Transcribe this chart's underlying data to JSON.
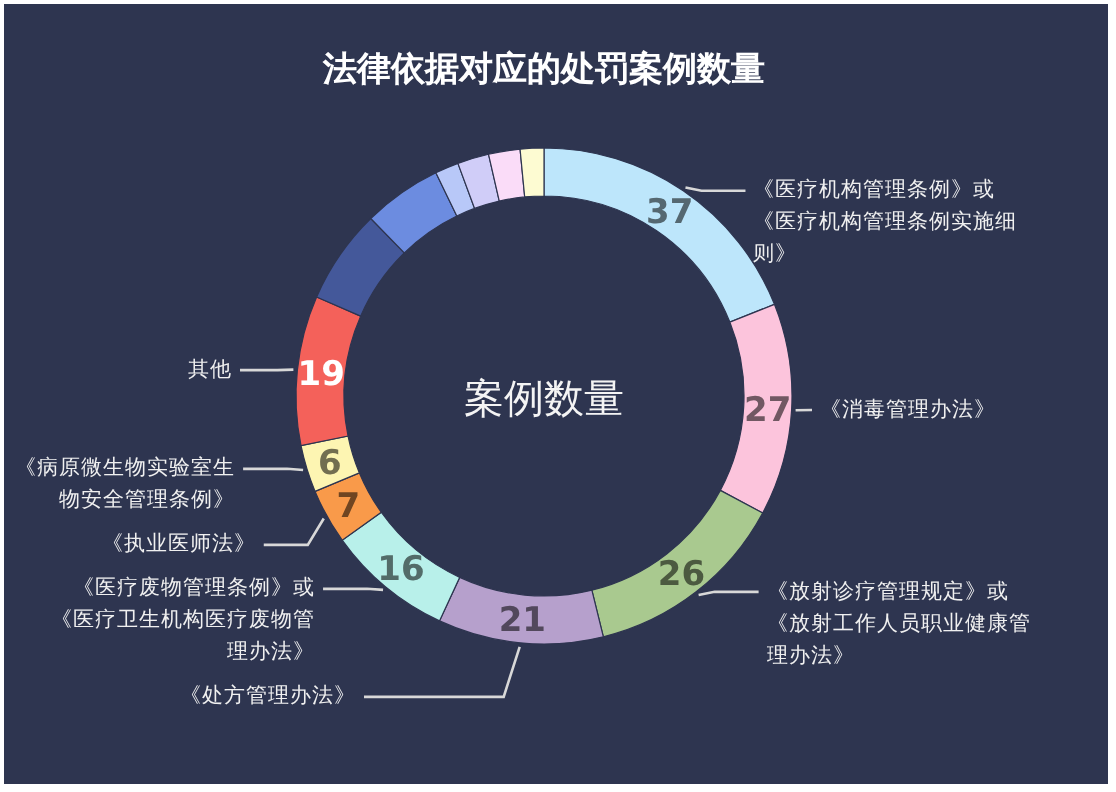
{
  "chart_data": {
    "type": "donut",
    "title": "法律依据对应的处罚案例数量",
    "annotations": [
      "案例数量"
    ],
    "categories": [
      "《医疗机构管理条例》或《医疗机构管理条例实施细则》",
      "《消毒管理办法》",
      "《放射诊疗管理规定》或《放射工作人员职业健康管理办法》",
      "《处方管理办法》",
      "《医疗废物管理条例》或《医疗卫生机构医疗废物管理办法》",
      "《执业医师法》",
      "《病原微生物实验室生物安全管理条例》",
      "其他",
      null,
      null,
      null,
      null,
      null,
      null
    ],
    "values": [
      37,
      27,
      26,
      21,
      16,
      7,
      6,
      19,
      12,
      10,
      3,
      4,
      4,
      3
    ],
    "value_labels": [
      "37",
      "27",
      "26",
      "21",
      "16",
      "7",
      "6",
      "19",
      null,
      null,
      null,
      null,
      null,
      null
    ],
    "colors": [
      "#bde6fb",
      "#fcc4dc",
      "#a9c98f",
      "#b6a0cc",
      "#b8f0ea",
      "#f99a4a",
      "#fdf5b2",
      "#f4615a",
      "#44589a",
      "#6c8ce0",
      "#b8c8f8",
      "#d0cdf8",
      "#fadcf8",
      "#fdfbd2"
    ]
  }
}
